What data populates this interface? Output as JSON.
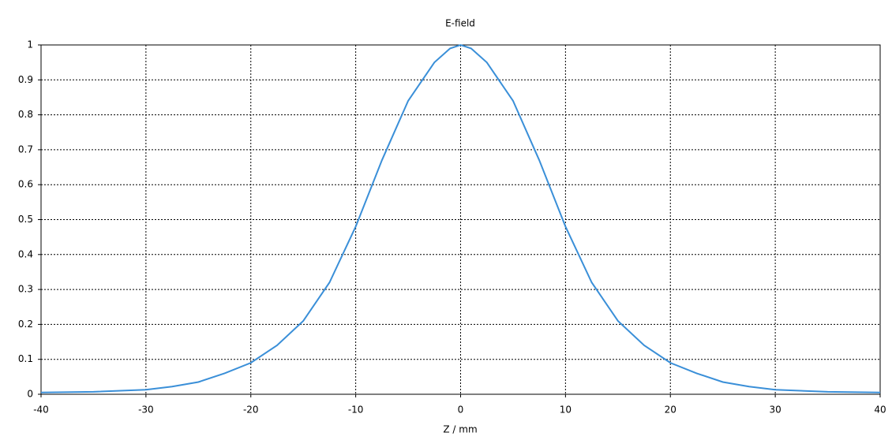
{
  "chart_data": {
    "type": "line",
    "title": "E-field",
    "x_label": "Z / mm",
    "x": [
      -40,
      -35,
      -30,
      -27.5,
      -25,
      -22.5,
      -20,
      -17.5,
      -15,
      -12.5,
      -10,
      -7.5,
      -5,
      -2.5,
      -1,
      0,
      1,
      2.5,
      5,
      7.5,
      10,
      12.5,
      15,
      17.5,
      20,
      22.5,
      25,
      27.5,
      30,
      35,
      40
    ],
    "series": [
      {
        "name": "E-field",
        "color": "#3a8fd8",
        "values": [
          0.005,
          0.007,
          0.013,
          0.022,
          0.035,
          0.06,
          0.09,
          0.14,
          0.21,
          0.32,
          0.48,
          0.67,
          0.84,
          0.95,
          0.99,
          1.0,
          0.99,
          0.95,
          0.84,
          0.67,
          0.48,
          0.32,
          0.21,
          0.14,
          0.09,
          0.06,
          0.035,
          0.022,
          0.013,
          0.007,
          0.005
        ]
      }
    ],
    "xlim": [
      -40,
      40
    ],
    "xticks": [
      -40,
      -30,
      -20,
      -10,
      0,
      10,
      20,
      30,
      40
    ],
    "ylim": [
      0,
      1
    ],
    "yticks": [
      0,
      0.1,
      0.2,
      0.3,
      0.4,
      0.5,
      0.6,
      0.7,
      0.8,
      0.9,
      1
    ],
    "grid": true
  }
}
